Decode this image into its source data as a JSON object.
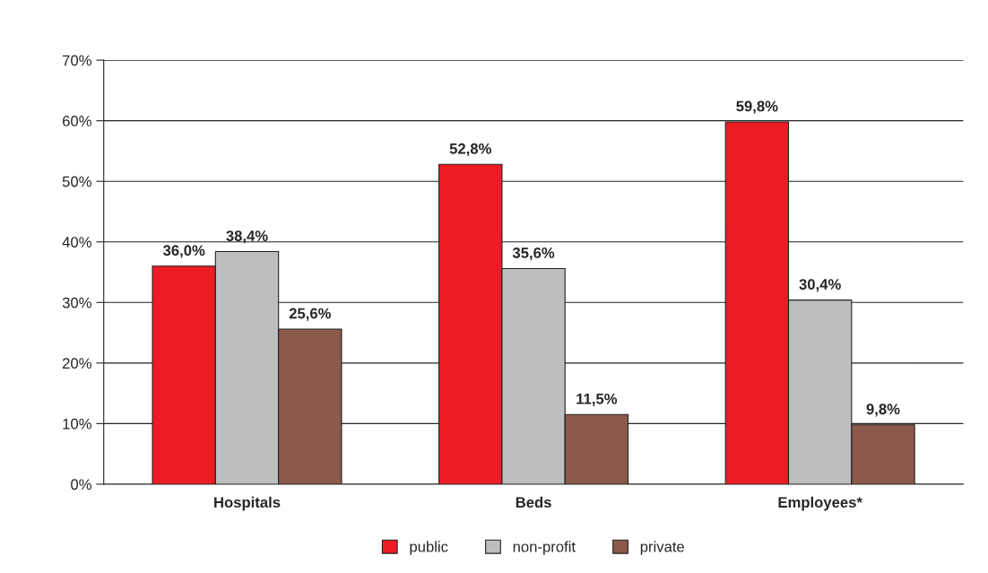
{
  "chart_data": {
    "type": "bar",
    "categories": [
      "Hospitals",
      "Beds",
      "Employees*"
    ],
    "series": [
      {
        "name": "public",
        "color": "#ed1c24",
        "values": [
          36.0,
          52.8,
          59.8
        ],
        "value_labels": [
          "36,0%",
          "52,8%",
          "59,8%"
        ]
      },
      {
        "name": "non-profit",
        "color": "#bcbec0",
        "values": [
          38.4,
          35.6,
          30.4
        ],
        "value_labels": [
          "38,4%",
          "35,6%",
          "30,4%"
        ]
      },
      {
        "name": "private",
        "color": "#8b5a4a",
        "values": [
          25.6,
          11.5,
          9.8
        ],
        "value_labels": [
          "25,6%",
          "11,5%",
          "9,8%"
        ]
      }
    ],
    "ylim": [
      0,
      70
    ],
    "yticks": [
      {
        "value": 0,
        "label": "0%"
      },
      {
        "value": 10,
        "label": "10%"
      },
      {
        "value": 20,
        "label": "20%"
      },
      {
        "value": 30,
        "label": "30%"
      },
      {
        "value": 40,
        "label": "40%"
      },
      {
        "value": 50,
        "label": "50%"
      },
      {
        "value": 60,
        "label": "60%"
      },
      {
        "value": 70,
        "label": "70%"
      }
    ],
    "grid": "y",
    "legend": "bottom"
  }
}
